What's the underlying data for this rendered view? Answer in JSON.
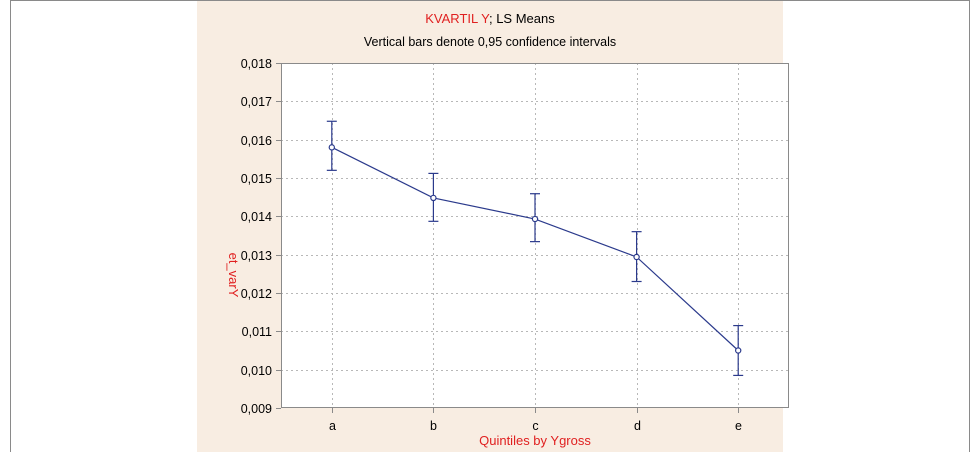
{
  "chart_data": {
    "type": "line",
    "title_part1": "KVARTIL Y",
    "title_part2": "; LS Means",
    "subtitle": "Vertical bars denote 0,95 confidence intervals",
    "xlabel": "Quintiles by Ygross",
    "ylabel": "et_varY",
    "categories": [
      "a",
      "b",
      "c",
      "d",
      "e"
    ],
    "values": [
      0.0158,
      0.01448,
      0.01393,
      0.01294,
      0.0105
    ],
    "ci_upper": [
      0.01648,
      0.01512,
      0.01459,
      0.0136,
      0.01115
    ],
    "ci_lower": [
      0.0152,
      0.01387,
      0.01334,
      0.0123,
      0.00985
    ],
    "ylim": [
      0.009,
      0.018
    ],
    "yticks": [
      0.009,
      0.01,
      0.011,
      0.012,
      0.013,
      0.014,
      0.015,
      0.016,
      0.017,
      0.018
    ],
    "ytick_labels": [
      "0,009",
      "0,010",
      "0,011",
      "0,012",
      "0,013",
      "0,014",
      "0,015",
      "0,016",
      "0,017",
      "0,018"
    ],
    "grid": true,
    "colors": {
      "line": "#2b3a8c",
      "title_highlight": "#e02020",
      "label": "#e02020",
      "text": "#000000",
      "panel_background": "#f8ede2",
      "plot_background": "#ffffff",
      "grid": "#b8b8b8",
      "frame": "#8a8a8a"
    }
  }
}
